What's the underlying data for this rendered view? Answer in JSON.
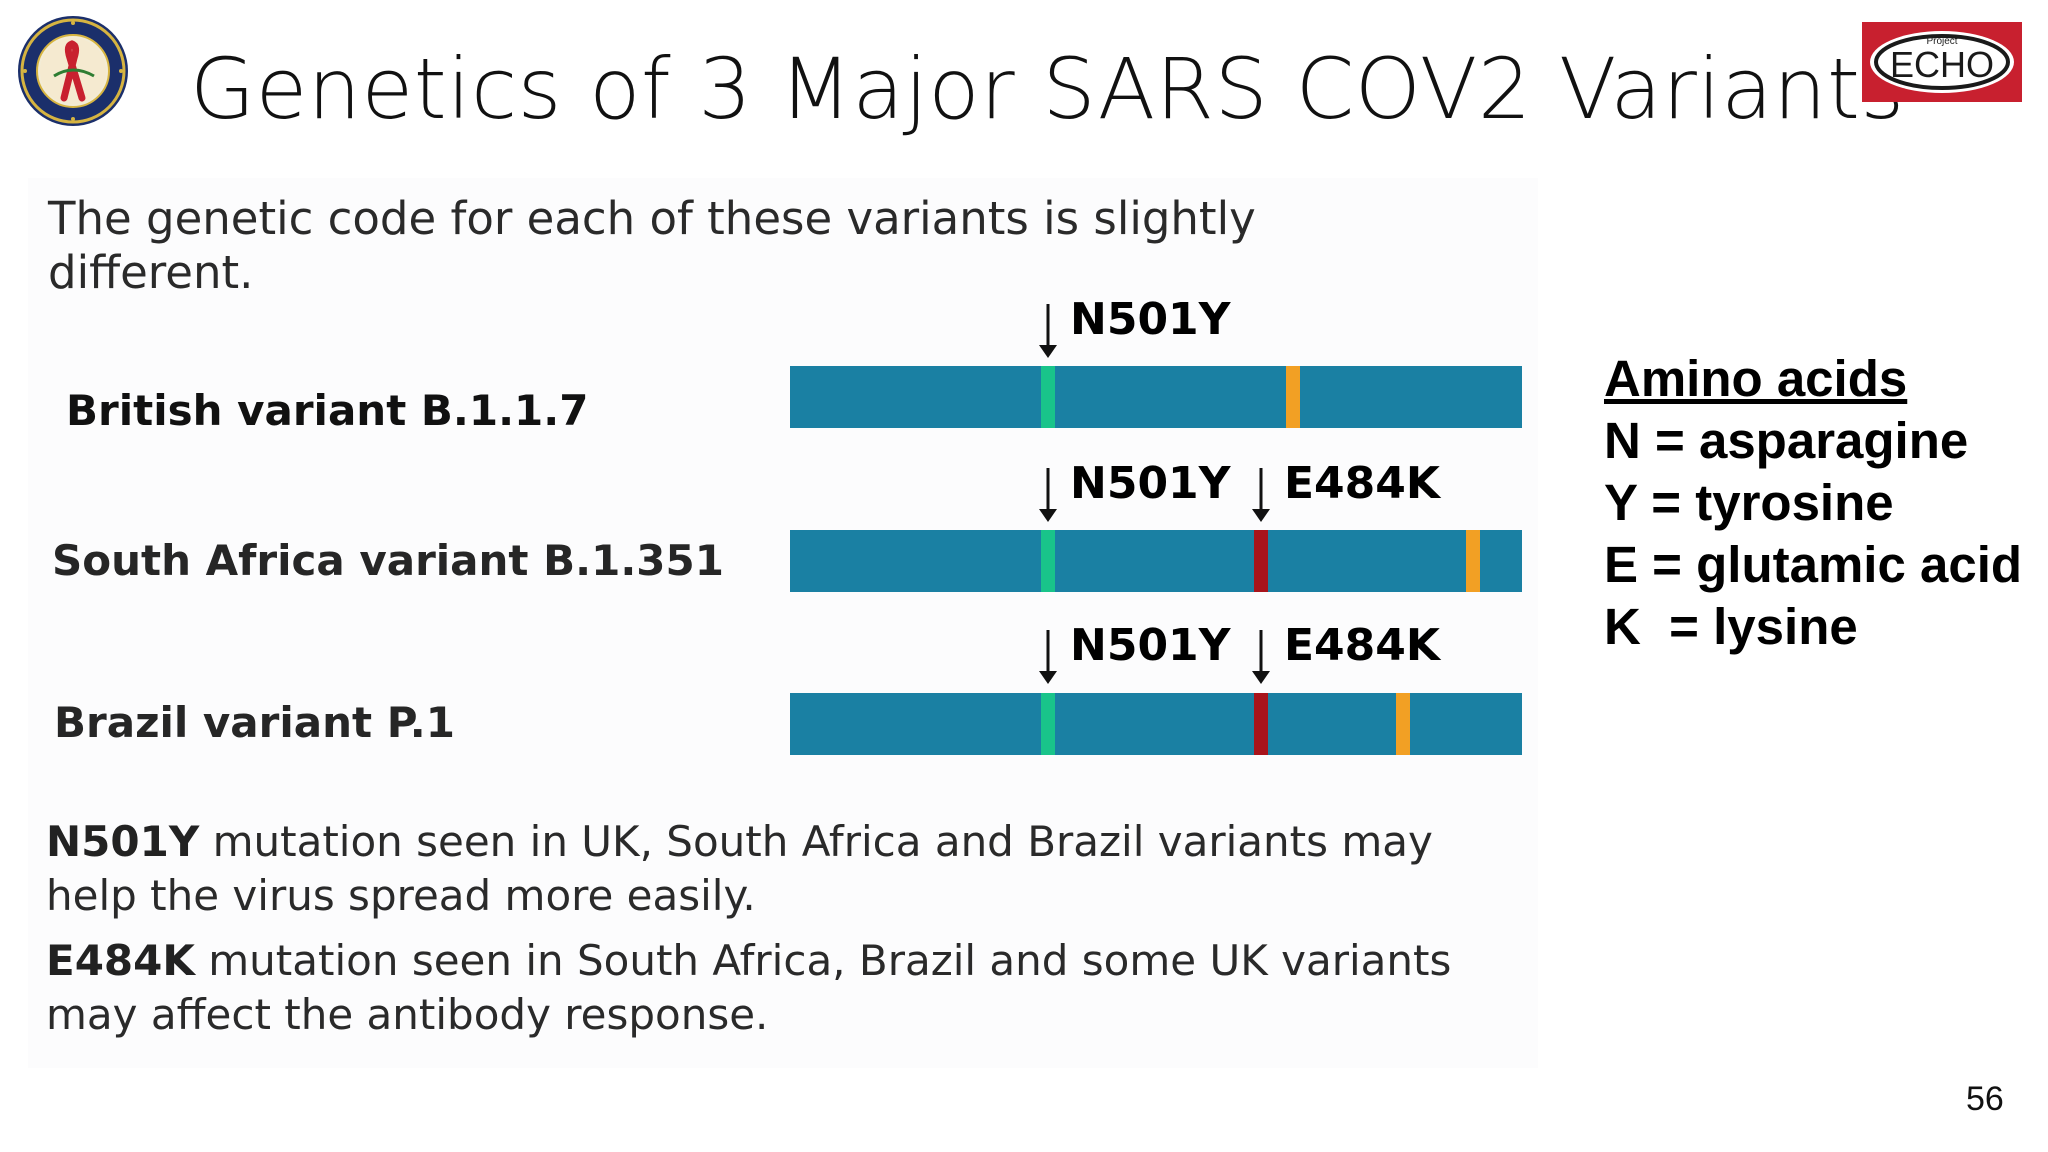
{
  "title": "Genetics of 3 Major SARS COV2 Variants",
  "intro": "The genetic code for each of these variants is slightly different.",
  "variants": [
    {
      "label": "British variant B.1.1.7",
      "mutations": [
        "N501Y"
      ]
    },
    {
      "label": "South Africa variant B.1.351",
      "mutations": [
        "N501Y",
        "E484K"
      ]
    },
    {
      "label": "Brazil variant P.1",
      "mutations": [
        "N501Y",
        "E484K"
      ]
    }
  ],
  "legend": {
    "title": "Amino acids",
    "items": [
      "N = asparagine",
      "Y = tyrosine",
      "E = glutamic acid",
      "K  = lysine"
    ]
  },
  "notes": {
    "n501y_term": "N501Y",
    "n501y_text": " mutation seen in UK, South Africa and Brazil variants may help the virus spread more easily.",
    "e484k_term": "E484K",
    "e484k_text": " mutation seen in South Africa, Brazil and some UK variants may affect the antibody response."
  },
  "page_number": "56",
  "logos": {
    "seal_text": "DEPARTMENT OF DEFENSE HIV/AIDS PREVENTION",
    "echo_small": "Project",
    "echo_main": "ECHO"
  },
  "colors": {
    "genome_bar": "#1a80a3",
    "n501y_marker": "#19c48a",
    "e484k_marker": "#a8141b",
    "other_marker": "#f2a024",
    "echo_red": "#c8202f"
  }
}
